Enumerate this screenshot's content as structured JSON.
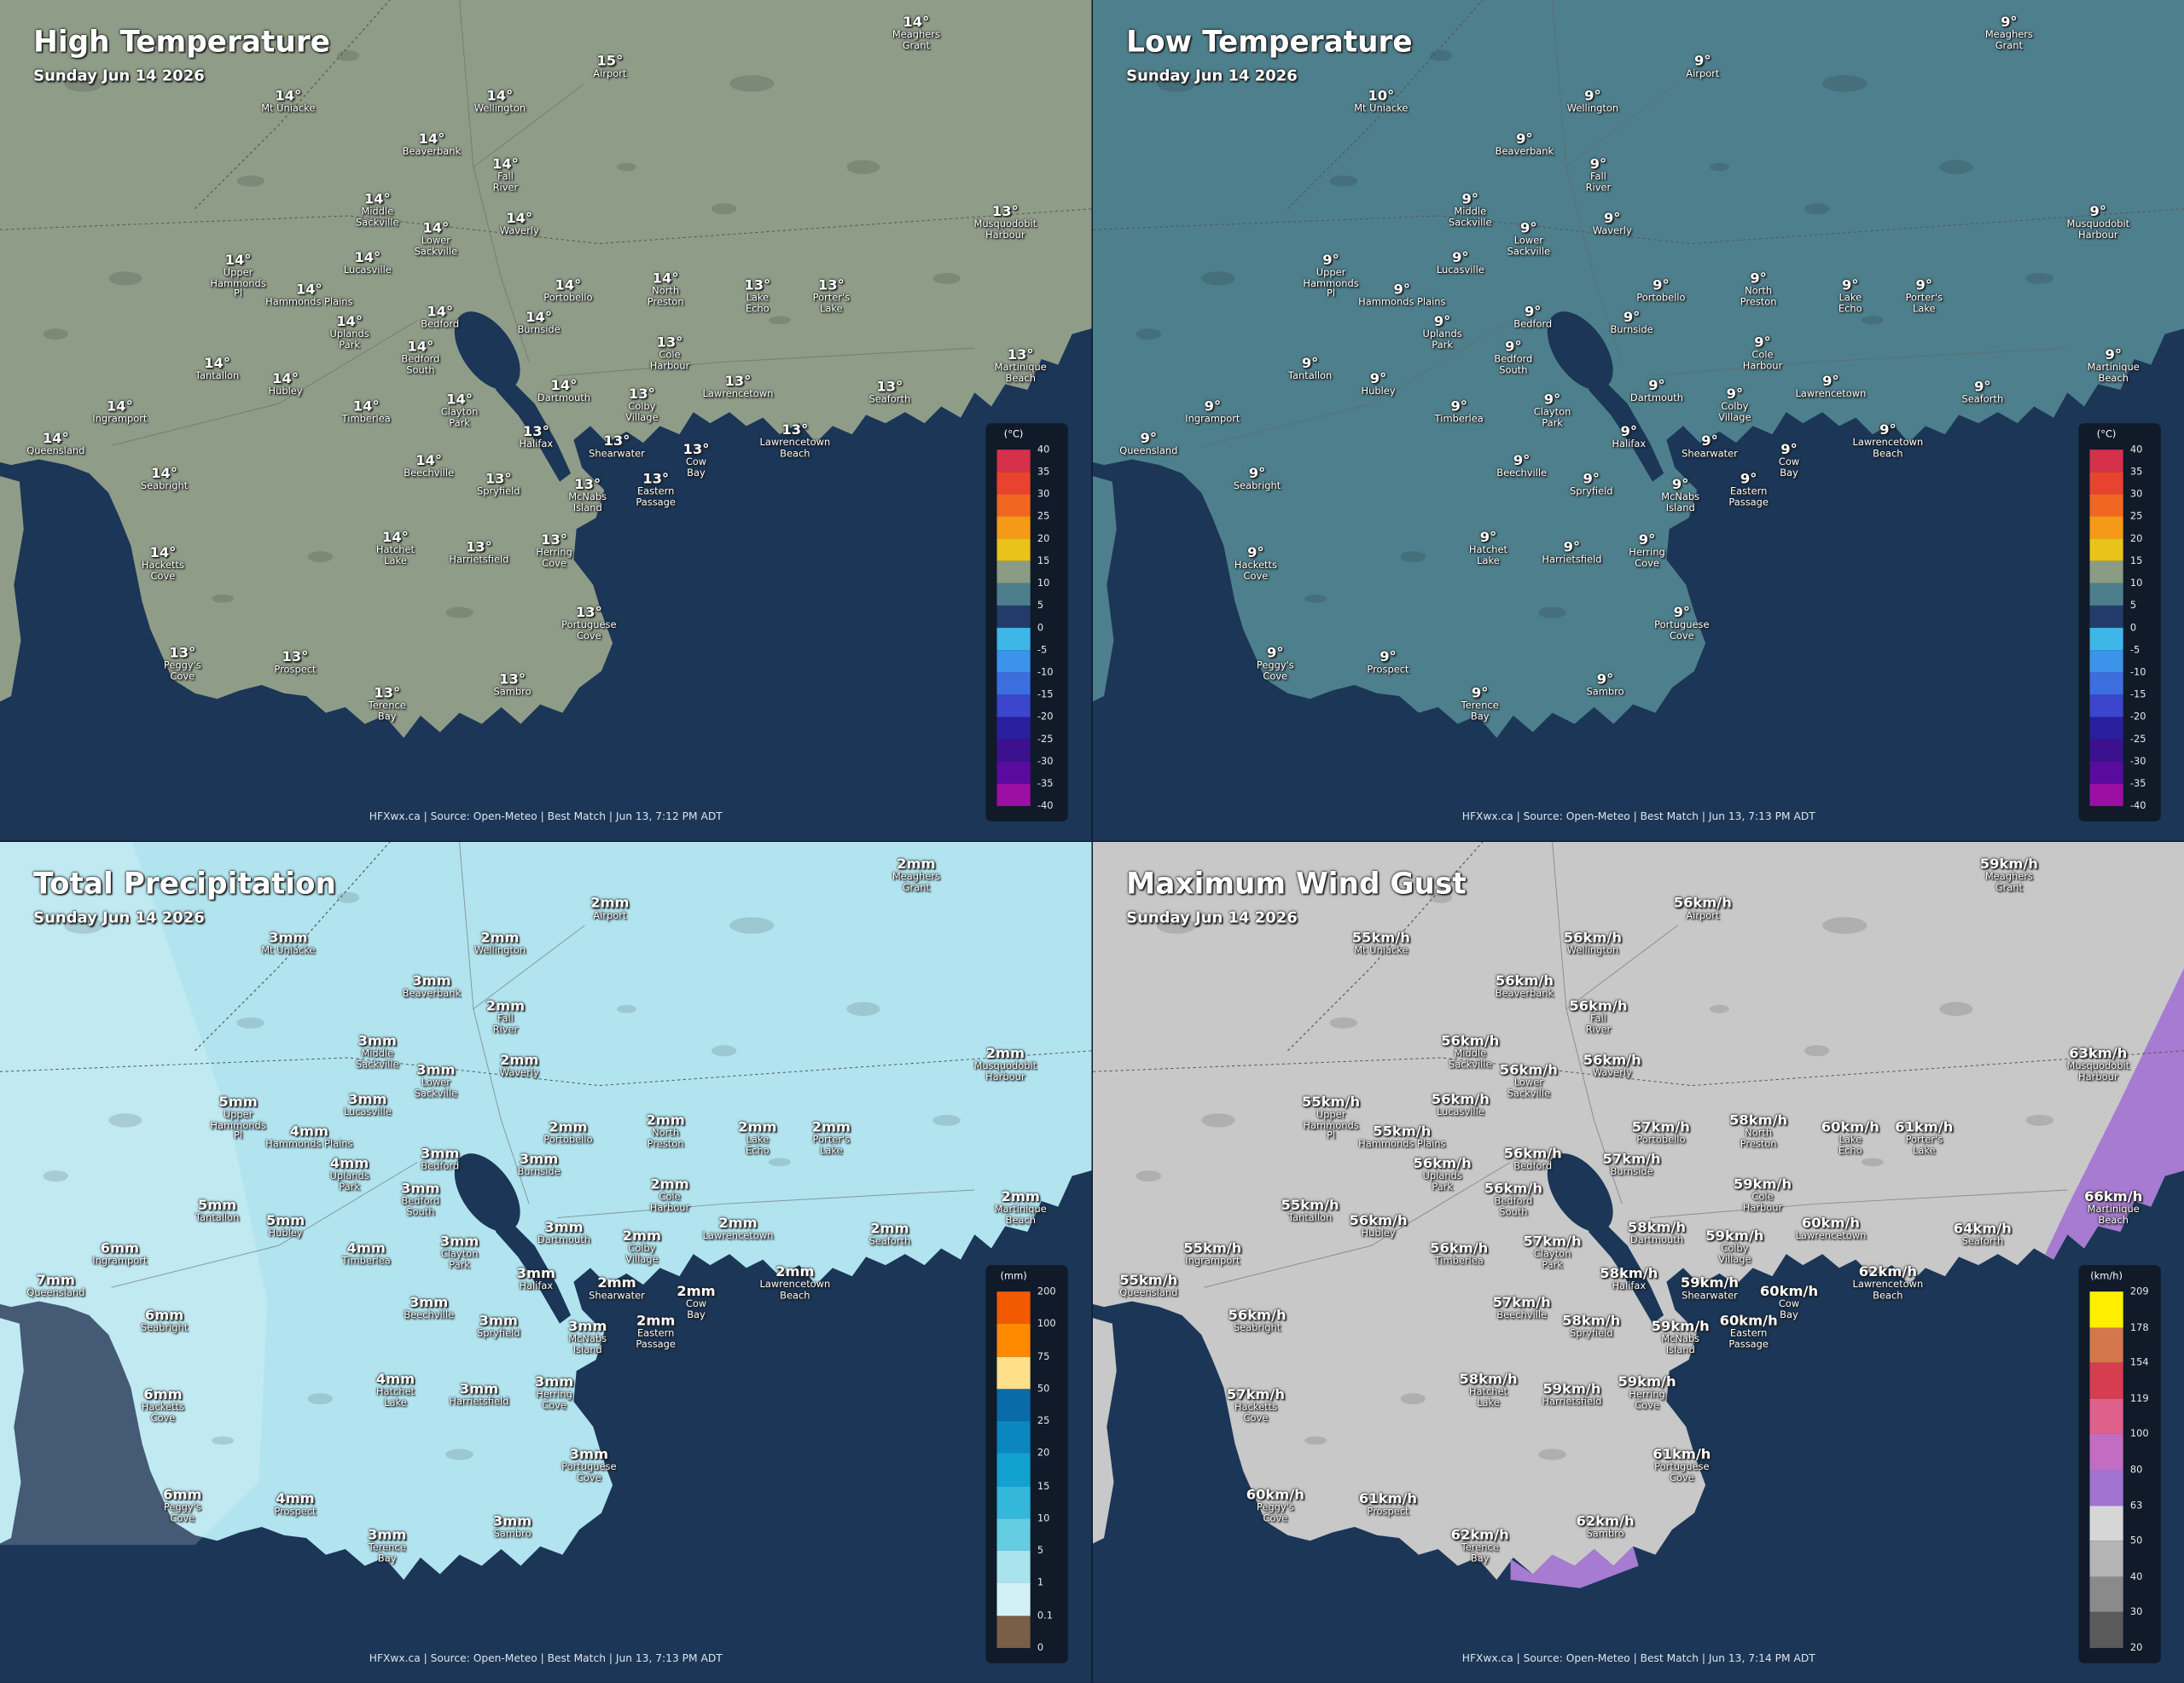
{
  "places": [
    "Mt Uniacke",
    "Wellington",
    "Airport",
    "Meaghers Grant",
    "Beaverbank",
    "Fall River",
    "Middle Sackville",
    "Waverly",
    "Lower Sackville",
    "Musquodobit Harbour",
    "Upper Hammonds Pl",
    "Lucasville",
    "Hammonds Plains",
    "Portobello",
    "North Preston",
    "Lake Echo",
    "Porter's Lake",
    "Uplands Park",
    "Bedford",
    "Burnside",
    "Bedford South",
    "Cole Harbour",
    "Tantallon",
    "Hubley",
    "Martinique Beach",
    "Lawrencetown",
    "Dartmouth",
    "Colby Village",
    "Seaforth",
    "Ingramport",
    "Timberlea",
    "Clayton Park",
    "Shearwater",
    "Halifax",
    "Lawrencetown Beach",
    "Queensland",
    "Cow Bay",
    "Beechville",
    "Eastern Passage",
    "Spryfield",
    "Seabright",
    "McNabs Island",
    "Hatchet Lake",
    "Harrietsfield",
    "Herring Cove",
    "Hacketts Cove",
    "Portuguese Cove",
    "Peggy's Cove",
    "Prospect",
    "Terence Bay",
    "Sambro"
  ],
  "maps": [
    {
      "title": "High Temperature",
      "subtitle": "Sunday Jun 14 2026",
      "land_color": "#8f9d88",
      "labels": [
        "14°",
        "14°",
        "15°",
        "14°",
        "14°",
        "14°",
        "14°",
        "14°",
        "14°",
        "13°",
        "14°",
        "14°",
        "14°",
        "14°",
        "14°",
        "13°",
        "13°",
        "14°",
        "14°",
        "14°",
        "14°",
        "13°",
        "14°",
        "14°",
        "13°",
        "13°",
        "14°",
        "13°",
        "13°",
        "14°",
        "14°",
        "14°",
        "13°",
        "13°",
        "13°",
        "14°",
        "13°",
        "14°",
        "13°",
        "13°",
        "14°",
        "13°",
        "14°",
        "13°",
        "13°",
        "14°",
        "13°",
        "13°",
        "13°",
        "13°",
        "13°"
      ],
      "legend": {
        "unit": "(°C)",
        "labels": [
          40,
          35,
          30,
          25,
          20,
          15,
          10,
          5,
          0,
          -5,
          -10,
          -15,
          -20,
          -25,
          -30,
          -35,
          -40
        ],
        "colors": [
          "#d5304c",
          "#e8432f",
          "#f06722",
          "#f59a16",
          "#e9c31a",
          "#8a9c82",
          "#4d7e8b",
          "#233c69",
          "#3eb6e8",
          "#3b94ea",
          "#3d6ee0",
          "#3b46cc",
          "#2a1f9c",
          "#3b118e",
          "#5a0b9f",
          "#9c0fa4"
        ]
      },
      "credit": "HFXwx.ca | Source: Open-Meteo | Best Match | Jun 13, 7:12 PM ADT"
    },
    {
      "title": "Low Temperature",
      "subtitle": "Sunday Jun 14 2026",
      "land_color": "#4e7f8c",
      "labels": [
        "10°",
        "9°",
        "9°",
        "9°",
        "9°",
        "9°",
        "9°",
        "9°",
        "9°",
        "9°",
        "9°",
        "9°",
        "9°",
        "9°",
        "9°",
        "9°",
        "9°",
        "9°",
        "9°",
        "9°",
        "9°",
        "9°",
        "9°",
        "9°",
        "9°",
        "9°",
        "9°",
        "9°",
        "9°",
        "9°",
        "9°",
        "9°",
        "9°",
        "9°",
        "9°",
        "9°",
        "9°",
        "9°",
        "9°",
        "9°",
        "9°",
        "9°",
        "9°",
        "9°",
        "9°",
        "9°",
        "9°",
        "9°",
        "9°",
        "9°",
        "9°"
      ],
      "legend": {
        "unit": "(°C)",
        "labels": [
          40,
          35,
          30,
          25,
          20,
          15,
          10,
          5,
          0,
          -5,
          -10,
          -15,
          -20,
          -25,
          -30,
          -35,
          -40
        ],
        "colors": [
          "#d5304c",
          "#e8432f",
          "#f06722",
          "#f59a16",
          "#e9c31a",
          "#8a9c82",
          "#4d7e8b",
          "#233c69",
          "#3eb6e8",
          "#3b94ea",
          "#3d6ee0",
          "#3b46cc",
          "#2a1f9c",
          "#3b118e",
          "#5a0b9f",
          "#9c0fa4"
        ]
      },
      "credit": "HFXwx.ca | Source: Open-Meteo | Best Match | Jun 13, 7:13 PM ADT"
    },
    {
      "title": "Total Precipitation",
      "subtitle": "Sunday Jun 14 2026",
      "land_color": "#b2e4ef",
      "labels": [
        "3mm",
        "2mm",
        "2mm",
        "2mm",
        "3mm",
        "2mm",
        "3mm",
        "2mm",
        "3mm",
        "2mm",
        "5mm",
        "3mm",
        "4mm",
        "2mm",
        "2mm",
        "2mm",
        "2mm",
        "4mm",
        "3mm",
        "3mm",
        "3mm",
        "2mm",
        "5mm",
        "5mm",
        "2mm",
        "2mm",
        "3mm",
        "2mm",
        "2mm",
        "6mm",
        "4mm",
        "3mm",
        "2mm",
        "3mm",
        "2mm",
        "7mm",
        "2mm",
        "3mm",
        "2mm",
        "3mm",
        "6mm",
        "3mm",
        "4mm",
        "3mm",
        "3mm",
        "6mm",
        "3mm",
        "6mm",
        "4mm",
        "3mm",
        "3mm"
      ],
      "legend": {
        "unit": "(mm)",
        "labels": [
          200,
          100,
          75,
          50,
          25,
          20,
          15,
          10,
          5,
          1,
          0.1,
          0
        ],
        "colors": [
          "#f25a00",
          "#ff8a00",
          "#ffe08a",
          "#0b6aa8",
          "#0b86c0",
          "#12a2d0",
          "#33b8da",
          "#64cde2",
          "#a8e3ee",
          "#d2f1f6",
          "#7a5f48"
        ]
      },
      "credit": "HFXwx.ca | Source: Open-Meteo | Best Match | Jun 13, 7:13 PM ADT"
    },
    {
      "title": "Maximum Wind Gust",
      "subtitle": "Sunday Jun 14 2026",
      "land_color": "#c8c8c8",
      "labels": [
        "55km/h",
        "56km/h",
        "56km/h",
        "59km/h",
        "56km/h",
        "56km/h",
        "56km/h",
        "56km/h",
        "56km/h",
        "63km/h",
        "55km/h",
        "56km/h",
        "55km/h",
        "57km/h",
        "58km/h",
        "60km/h",
        "61km/h",
        "56km/h",
        "56km/h",
        "57km/h",
        "56km/h",
        "59km/h",
        "55km/h",
        "56km/h",
        "66km/h",
        "60km/h",
        "58km/h",
        "59km/h",
        "64km/h",
        "55km/h",
        "56km/h",
        "57km/h",
        "59km/h",
        "58km/h",
        "62km/h",
        "55km/h",
        "60km/h",
        "57km/h",
        "60km/h",
        "58km/h",
        "56km/h",
        "59km/h",
        "58km/h",
        "59km/h",
        "59km/h",
        "57km/h",
        "61km/h",
        "60km/h",
        "61km/h",
        "62km/h",
        "62km/h"
      ],
      "legend": {
        "unit": "(km/h)",
        "labels": [
          209,
          178,
          154,
          119,
          100,
          80,
          63,
          50,
          40,
          30,
          20
        ],
        "colors": [
          "#ffee00",
          "#d4784c",
          "#d63e50",
          "#df608a",
          "#c36cc2",
          "#a373d2",
          "#d6d6d6",
          "#b4b4b4",
          "#8a8a8a",
          "#5a5a5a"
        ]
      },
      "credit": "HFXwx.ca | Source: Open-Meteo | Best Match | Jun 13, 7:14 PM ADT"
    }
  ]
}
